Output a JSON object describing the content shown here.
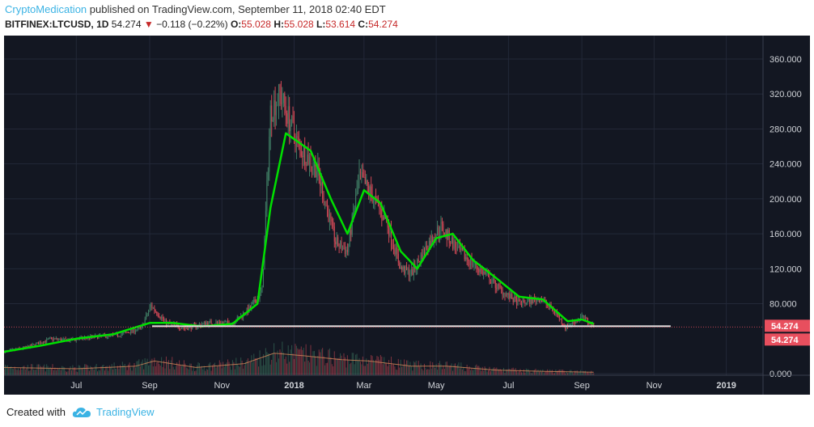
{
  "header": {
    "author": "CryptoMedication",
    "published_text": " published on TradingView.com, September 11, 2018 02:40 EDT",
    "symbol": "BITFINEX:LTCUSD, 1D",
    "last": "54.274",
    "change": "−0.118 (−0.22%)",
    "o_label": "O:",
    "o_value": "55.028",
    "h_label": "H:",
    "h_value": "55.028",
    "l_label": "L:",
    "l_value": "53.614",
    "c_label": "C:",
    "c_value": "54.274"
  },
  "footer": {
    "created_with": "Created with",
    "brand": "TradingView"
  },
  "colors": {
    "background": "#131722",
    "up": "#3f7d64",
    "down": "#d04856",
    "ma": "#00e000",
    "support": "#e6e6e6",
    "price_tag": "#e84f5e",
    "author": "#3bb3e4"
  },
  "chart_data": {
    "type": "candlestick",
    "price_tag_labels": [
      "54.274",
      "54.274"
    ],
    "support_level": 54.3,
    "y_ticks": [
      {
        "label": "360.000",
        "value": 360
      },
      {
        "label": "320.000",
        "value": 320
      },
      {
        "label": "280.000",
        "value": 280
      },
      {
        "label": "240.000",
        "value": 240
      },
      {
        "label": "200.000",
        "value": 200
      },
      {
        "label": "160.000",
        "value": 160
      },
      {
        "label": "120.000",
        "value": 120
      },
      {
        "label": "80.000",
        "value": 80
      },
      {
        "label": "0.000",
        "value": 0
      }
    ],
    "x_ticks": [
      {
        "label": "Jul",
        "date": "2017-07-01",
        "bold": false
      },
      {
        "label": "Sep",
        "date": "2017-09-01",
        "bold": false
      },
      {
        "label": "Nov",
        "date": "2017-11-01",
        "bold": false
      },
      {
        "label": "2018",
        "date": "2018-01-01",
        "bold": true
      },
      {
        "label": "Mar",
        "date": "2018-03-01",
        "bold": false
      },
      {
        "label": "May",
        "date": "2018-05-01",
        "bold": false
      },
      {
        "label": "Jul",
        "date": "2018-07-01",
        "bold": false
      },
      {
        "label": "Sep",
        "date": "2018-09-01",
        "bold": false
      },
      {
        "label": "Nov",
        "date": "2018-11-01",
        "bold": false
      },
      {
        "label": "2019",
        "date": "2019-01-01",
        "bold": true
      }
    ],
    "x_range": [
      "2017-05-01",
      "2019-02-01"
    ],
    "price_path": [
      [
        "2017-05-01",
        25
      ],
      [
        "2017-05-20",
        30
      ],
      [
        "2017-06-10",
        40
      ],
      [
        "2017-06-25",
        38
      ],
      [
        "2017-07-15",
        42
      ],
      [
        "2017-08-05",
        44
      ],
      [
        "2017-08-25",
        52
      ],
      [
        "2017-09-02",
        78
      ],
      [
        "2017-09-15",
        58
      ],
      [
        "2017-10-01",
        52
      ],
      [
        "2017-10-20",
        58
      ],
      [
        "2017-11-10",
        58
      ],
      [
        "2017-11-25",
        75
      ],
      [
        "2017-12-05",
        95
      ],
      [
        "2017-12-12",
        300
      ],
      [
        "2017-12-20",
        320
      ],
      [
        "2018-01-05",
        260
      ],
      [
        "2018-01-20",
        235
      ],
      [
        "2018-02-05",
        150
      ],
      [
        "2018-02-15",
        140
      ],
      [
        "2018-02-25",
        225
      ],
      [
        "2018-03-05",
        210
      ],
      [
        "2018-03-20",
        175
      ],
      [
        "2018-04-01",
        120
      ],
      [
        "2018-04-10",
        115
      ],
      [
        "2018-04-25",
        150
      ],
      [
        "2018-05-05",
        168
      ],
      [
        "2018-05-20",
        140
      ],
      [
        "2018-06-10",
        115
      ],
      [
        "2018-06-25",
        95
      ],
      [
        "2018-07-10",
        80
      ],
      [
        "2018-07-28",
        86
      ],
      [
        "2018-08-10",
        70
      ],
      [
        "2018-08-18",
        53
      ],
      [
        "2018-09-01",
        65
      ],
      [
        "2018-09-11",
        54.3
      ]
    ],
    "ma_path": [
      [
        "2017-05-01",
        25
      ],
      [
        "2017-06-01",
        32
      ],
      [
        "2017-07-01",
        40
      ],
      [
        "2017-08-01",
        45
      ],
      [
        "2017-09-01",
        58
      ],
      [
        "2017-09-20",
        58
      ],
      [
        "2017-10-15",
        54
      ],
      [
        "2017-11-10",
        57
      ],
      [
        "2017-12-01",
        80
      ],
      [
        "2017-12-12",
        190
      ],
      [
        "2017-12-25",
        275
      ],
      [
        "2018-01-15",
        255
      ],
      [
        "2018-02-01",
        200
      ],
      [
        "2018-02-15",
        160
      ],
      [
        "2018-03-01",
        210
      ],
      [
        "2018-03-15",
        195
      ],
      [
        "2018-04-01",
        140
      ],
      [
        "2018-04-15",
        120
      ],
      [
        "2018-05-01",
        155
      ],
      [
        "2018-05-15",
        160
      ],
      [
        "2018-06-01",
        130
      ],
      [
        "2018-06-20",
        110
      ],
      [
        "2018-07-10",
        88
      ],
      [
        "2018-07-30",
        85
      ],
      [
        "2018-08-20",
        60
      ],
      [
        "2018-09-01",
        62
      ],
      [
        "2018-09-11",
        57
      ]
    ],
    "volume_path": [
      [
        "2017-05-01",
        0.3
      ],
      [
        "2017-07-01",
        0.25
      ],
      [
        "2017-08-20",
        0.35
      ],
      [
        "2017-09-05",
        0.55
      ],
      [
        "2017-10-10",
        0.3
      ],
      [
        "2017-11-20",
        0.45
      ],
      [
        "2017-12-15",
        0.85
      ],
      [
        "2018-01-10",
        0.75
      ],
      [
        "2018-02-10",
        0.6
      ],
      [
        "2018-03-05",
        0.55
      ],
      [
        "2018-04-10",
        0.35
      ],
      [
        "2018-05-10",
        0.35
      ],
      [
        "2018-06-20",
        0.2
      ],
      [
        "2018-08-01",
        0.15
      ],
      [
        "2018-09-11",
        0.12
      ]
    ]
  }
}
